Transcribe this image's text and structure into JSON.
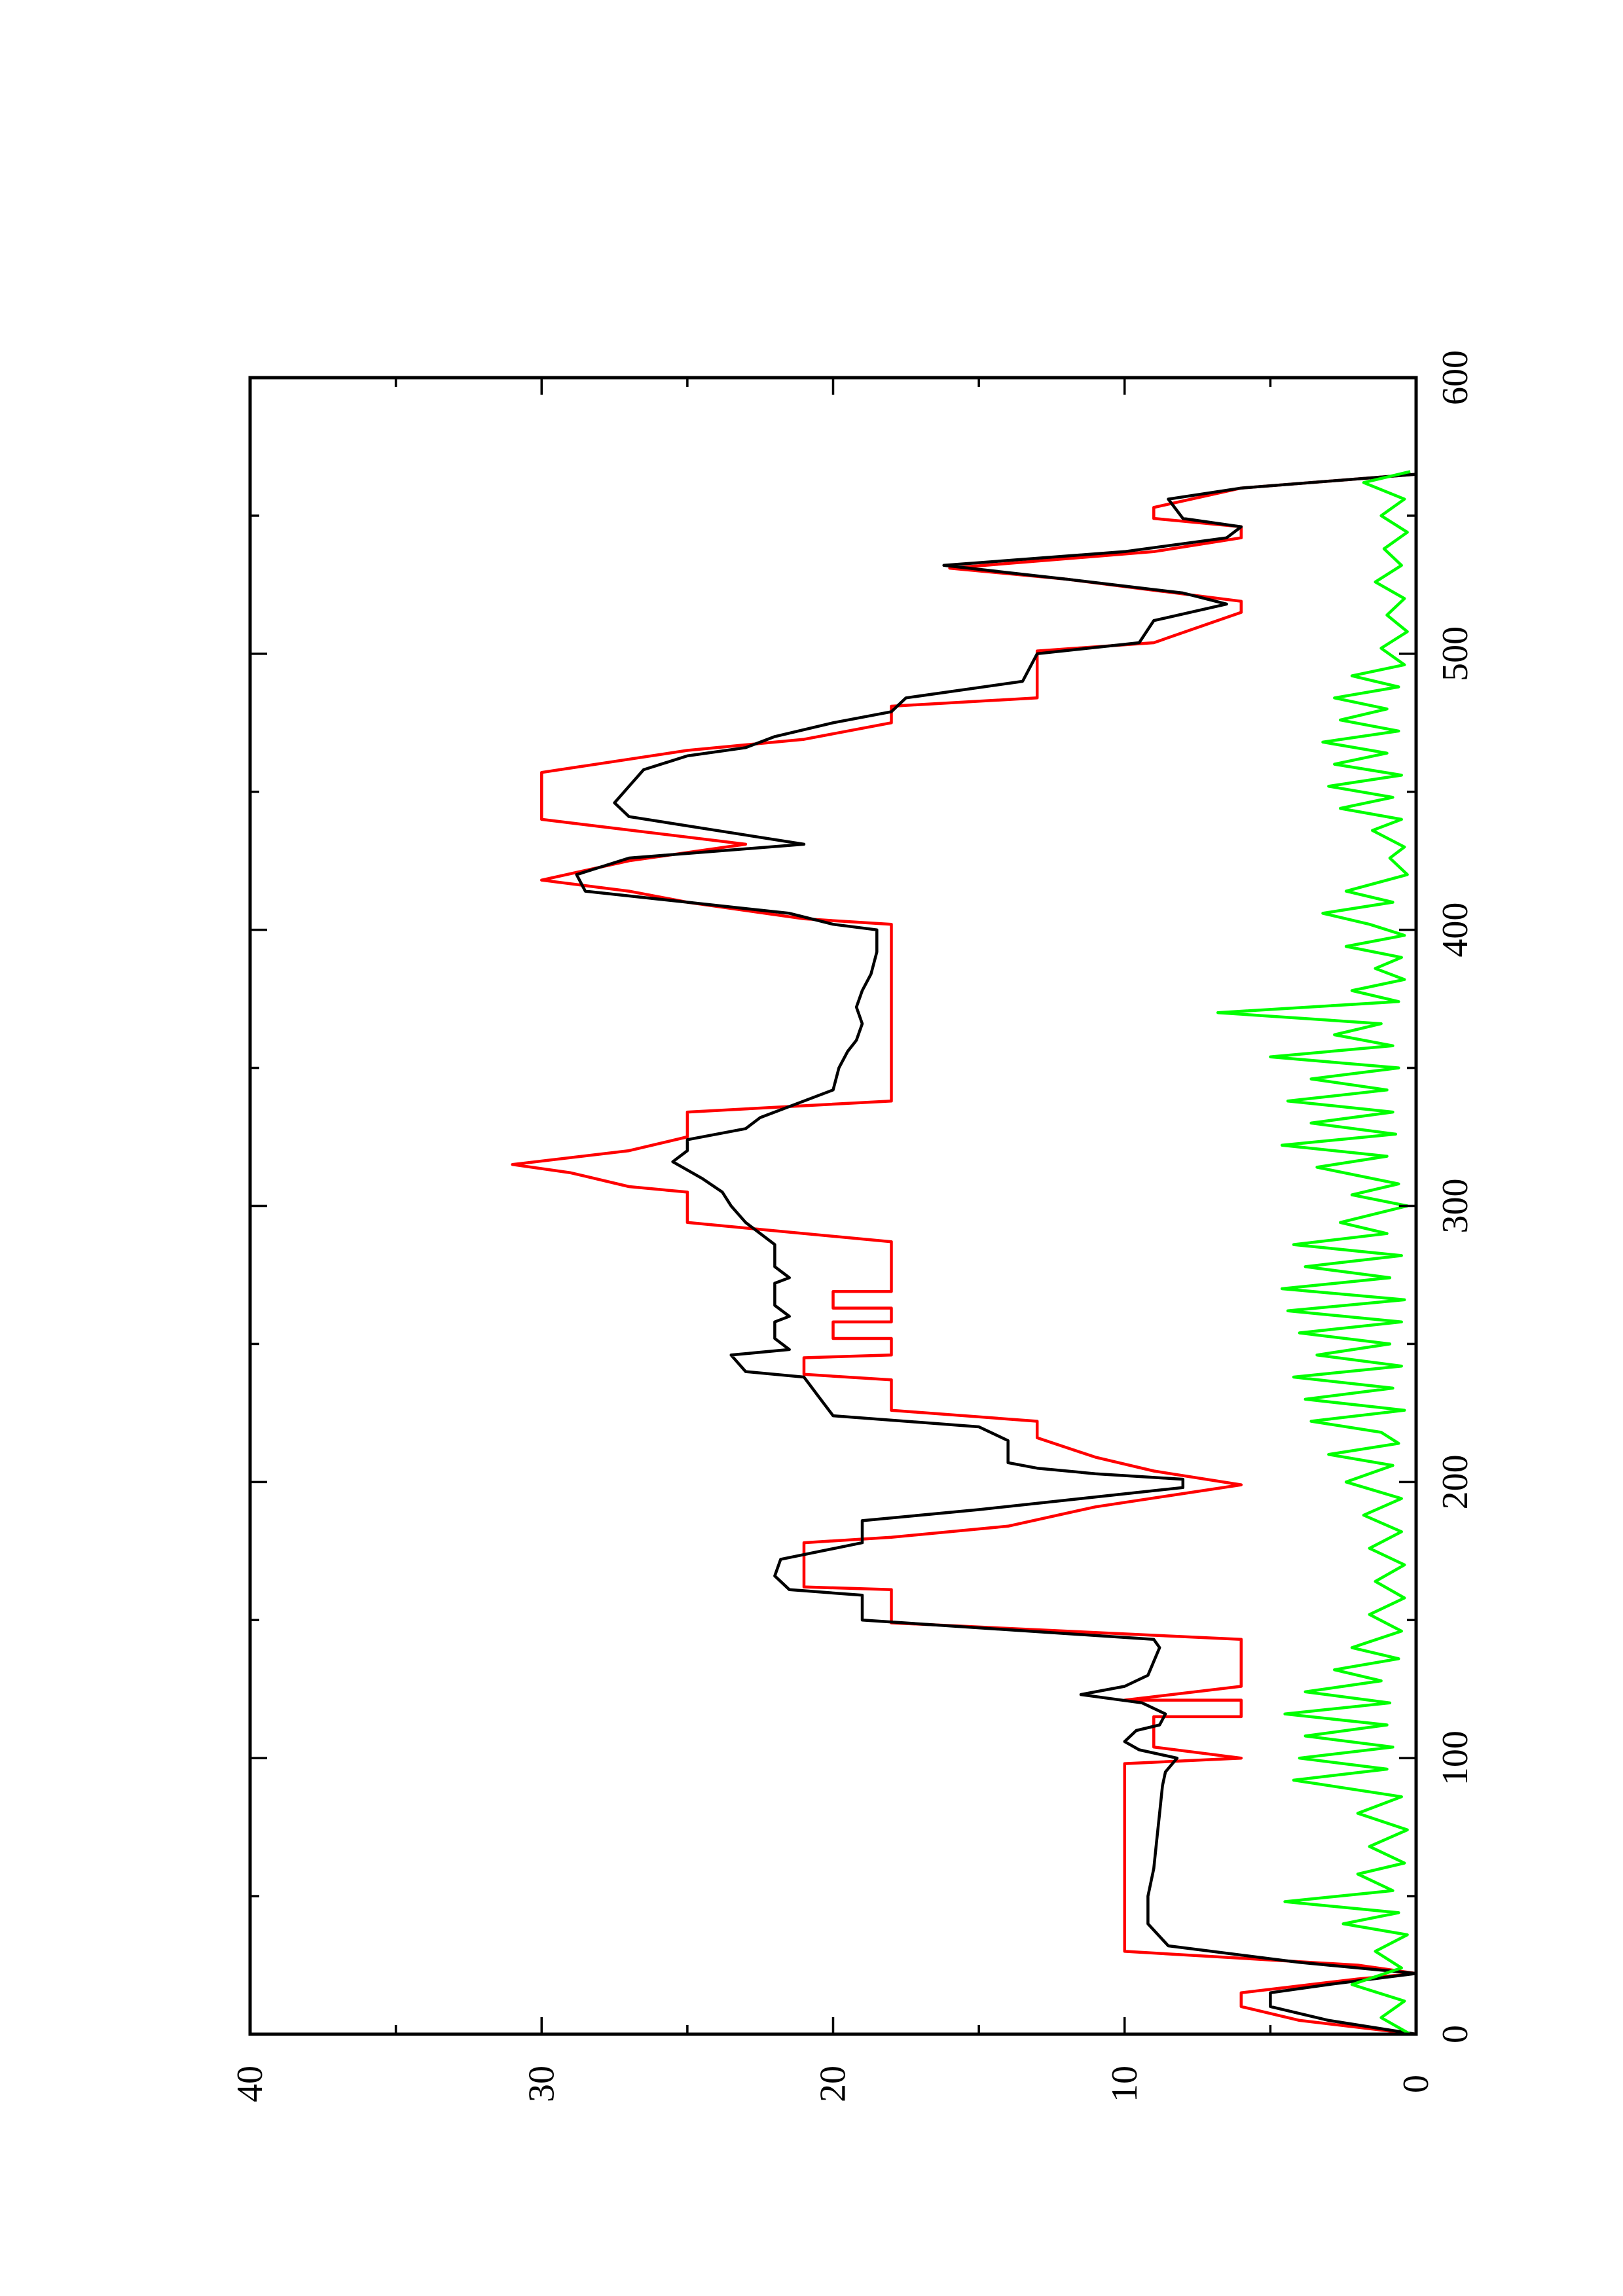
{
  "chart_data": {
    "type": "line",
    "orientation": "rotated-90-ccw",
    "title": "",
    "xlabel": "",
    "ylabel": "",
    "xlim": [
      0,
      600
    ],
    "ylim": [
      0,
      40
    ],
    "x_major_ticks": [
      0,
      100,
      200,
      300,
      400,
      500,
      600
    ],
    "x_minor_ticks": [
      50,
      150,
      250,
      350,
      450,
      550
    ],
    "y_major_ticks": [
      0,
      10,
      20,
      30,
      40
    ],
    "y_minor_ticks": [
      5,
      15,
      25,
      35
    ],
    "x_tick_labels": [
      "0",
      "100",
      "200",
      "300",
      "400",
      "500",
      "600"
    ],
    "y_tick_labels": [
      "0",
      "10",
      "20",
      "30",
      "40"
    ],
    "grid": false,
    "legend": "none",
    "series": [
      {
        "color": "#ff0000",
        "points": [
          [
            0,
            0
          ],
          [
            5,
            4
          ],
          [
            10,
            6
          ],
          [
            15,
            6
          ],
          [
            20,
            2
          ],
          [
            22,
            0
          ],
          [
            25,
            2
          ],
          [
            30,
            10
          ],
          [
            98,
            10
          ],
          [
            100,
            6
          ],
          [
            104,
            9
          ],
          [
            115,
            9
          ],
          [
            115,
            6
          ],
          [
            121,
            6
          ],
          [
            121,
            10
          ],
          [
            126,
            6
          ],
          [
            143,
            6
          ],
          [
            149,
            18
          ],
          [
            161,
            18
          ],
          [
            162,
            21
          ],
          [
            178,
            21
          ],
          [
            180,
            18
          ],
          [
            184,
            14
          ],
          [
            191,
            11
          ],
          [
            199,
            6
          ],
          [
            204,
            9
          ],
          [
            209,
            11
          ],
          [
            216,
            13
          ],
          [
            222,
            13
          ],
          [
            226,
            18
          ],
          [
            237,
            18
          ],
          [
            239,
            21
          ],
          [
            245,
            21
          ],
          [
            246,
            18
          ],
          [
            252,
            18
          ],
          [
            252,
            20
          ],
          [
            258,
            20
          ],
          [
            258,
            18
          ],
          [
            263,
            18
          ],
          [
            263,
            20
          ],
          [
            269,
            20
          ],
          [
            269,
            18
          ],
          [
            287,
            18
          ],
          [
            294,
            25
          ],
          [
            305,
            25
          ],
          [
            307,
            27
          ],
          [
            312,
            29
          ],
          [
            315,
            31
          ],
          [
            320,
            27
          ],
          [
            325,
            25
          ],
          [
            334,
            25
          ],
          [
            338,
            18
          ],
          [
            402,
            18
          ],
          [
            404,
            21
          ],
          [
            410,
            25
          ],
          [
            414,
            27
          ],
          [
            418,
            30
          ],
          [
            425,
            27
          ],
          [
            431,
            23
          ],
          [
            440,
            30
          ],
          [
            457,
            30
          ],
          [
            465,
            25
          ],
          [
            469,
            21
          ],
          [
            475,
            18
          ],
          [
            481,
            18
          ],
          [
            484,
            13
          ],
          [
            501,
            13
          ],
          [
            504,
            9
          ],
          [
            515,
            6
          ],
          [
            519,
            6
          ],
          [
            527,
            12
          ],
          [
            531,
            16
          ],
          [
            537,
            9
          ],
          [
            542,
            6
          ],
          [
            546,
            6
          ],
          [
            549,
            9
          ],
          [
            553,
            9
          ],
          [
            560,
            6
          ],
          [
            565,
            0
          ]
        ]
      },
      {
        "color": "#000000",
        "points": [
          [
            0,
            0
          ],
          [
            5,
            3
          ],
          [
            10,
            5
          ],
          [
            15,
            5
          ],
          [
            18,
            3
          ],
          [
            22,
            0
          ],
          [
            26,
            4
          ],
          [
            32,
            8.5
          ],
          [
            40,
            9.2
          ],
          [
            50,
            9.2
          ],
          [
            60,
            9
          ],
          [
            70,
            8.9
          ],
          [
            80,
            8.8
          ],
          [
            90,
            8.7
          ],
          [
            95,
            8.6
          ],
          [
            100,
            8.2
          ],
          [
            103,
            9.5
          ],
          [
            106,
            10
          ],
          [
            110,
            9.6
          ],
          [
            112,
            8.8
          ],
          [
            116,
            8.6
          ],
          [
            120,
            9.4
          ],
          [
            123,
            11.5
          ],
          [
            126,
            10
          ],
          [
            130,
            9.2
          ],
          [
            135,
            9
          ],
          [
            140,
            8.8
          ],
          [
            143,
            9
          ],
          [
            150,
            19
          ],
          [
            159,
            19
          ],
          [
            161,
            21.5
          ],
          [
            166,
            22
          ],
          [
            172,
            21.8
          ],
          [
            178,
            19
          ],
          [
            186,
            19
          ],
          [
            190,
            15
          ],
          [
            194,
            11.5
          ],
          [
            198,
            8
          ],
          [
            201,
            8
          ],
          [
            203,
            11
          ],
          [
            205,
            13
          ],
          [
            207,
            14
          ],
          [
            215,
            14
          ],
          [
            220,
            15
          ],
          [
            224,
            20
          ],
          [
            231,
            20.5
          ],
          [
            238,
            21
          ],
          [
            240,
            23
          ],
          [
            246,
            23.5
          ],
          [
            248,
            21.5
          ],
          [
            252,
            22
          ],
          [
            258,
            22
          ],
          [
            260,
            21.5
          ],
          [
            264,
            22
          ],
          [
            272,
            22
          ],
          [
            274,
            21.5
          ],
          [
            278,
            22
          ],
          [
            286,
            22
          ],
          [
            290,
            22.5
          ],
          [
            294,
            23
          ],
          [
            300,
            23.5
          ],
          [
            305,
            23.8
          ],
          [
            310,
            24.5
          ],
          [
            316,
            25.5
          ],
          [
            320,
            25
          ],
          [
            324,
            25
          ],
          [
            328,
            23
          ],
          [
            332,
            22.5
          ],
          [
            338,
            21
          ],
          [
            342,
            20
          ],
          [
            350,
            19.8
          ],
          [
            356,
            19.5
          ],
          [
            360,
            19.2
          ],
          [
            366,
            19
          ],
          [
            372,
            19.2
          ],
          [
            378,
            19
          ],
          [
            384,
            18.7
          ],
          [
            392,
            18.5
          ],
          [
            400,
            18.5
          ],
          [
            402,
            20
          ],
          [
            406,
            21.5
          ],
          [
            410,
            25
          ],
          [
            414,
            28.5
          ],
          [
            420,
            28.8
          ],
          [
            426,
            27
          ],
          [
            431,
            21
          ],
          [
            436,
            24
          ],
          [
            441,
            27
          ],
          [
            446,
            27.5
          ],
          [
            452,
            27
          ],
          [
            458,
            26.5
          ],
          [
            463,
            25
          ],
          [
            466,
            23
          ],
          [
            470,
            22
          ],
          [
            475,
            20
          ],
          [
            479,
            18
          ],
          [
            484,
            17.5
          ],
          [
            490,
            13.5
          ],
          [
            500,
            13
          ],
          [
            504,
            9.5
          ],
          [
            512,
            9
          ],
          [
            518,
            6.5
          ],
          [
            522,
            8
          ],
          [
            527,
            12
          ],
          [
            532,
            16.2
          ],
          [
            537,
            10
          ],
          [
            542,
            6.5
          ],
          [
            546,
            6
          ],
          [
            549,
            8
          ],
          [
            556,
            8.5
          ],
          [
            560,
            6
          ],
          [
            565,
            0
          ]
        ]
      },
      {
        "color": "#00ff00",
        "points": [
          [
            0,
            0.2
          ],
          [
            6,
            1.2
          ],
          [
            12,
            0.4
          ],
          [
            18,
            2.2
          ],
          [
            24,
            0.5
          ],
          [
            30,
            1.4
          ],
          [
            36,
            0.3
          ],
          [
            40,
            2.5
          ],
          [
            44,
            0.6
          ],
          [
            48,
            4.5
          ],
          [
            52,
            0.8
          ],
          [
            58,
            2
          ],
          [
            62,
            0.4
          ],
          [
            68,
            1.6
          ],
          [
            74,
            0.3
          ],
          [
            80,
            2
          ],
          [
            86,
            0.5
          ],
          [
            92,
            4.2
          ],
          [
            96,
            1
          ],
          [
            100,
            4
          ],
          [
            104,
            0.8
          ],
          [
            108,
            3.8
          ],
          [
            112,
            1
          ],
          [
            116,
            4.5
          ],
          [
            120,
            0.9
          ],
          [
            124,
            3.8
          ],
          [
            128,
            1.2
          ],
          [
            132,
            2.8
          ],
          [
            136,
            0.6
          ],
          [
            140,
            2.2
          ],
          [
            146,
            0.5
          ],
          [
            152,
            1.6
          ],
          [
            158,
            0.4
          ],
          [
            164,
            1.4
          ],
          [
            170,
            0.4
          ],
          [
            176,
            1.6
          ],
          [
            182,
            0.5
          ],
          [
            188,
            1.8
          ],
          [
            194,
            0.5
          ],
          [
            200,
            2.4
          ],
          [
            206,
            0.8
          ],
          [
            210,
            3
          ],
          [
            214,
            0.6
          ],
          [
            218,
            1.2
          ],
          [
            222,
            3.6
          ],
          [
            226,
            0.4
          ],
          [
            230,
            3.8
          ],
          [
            234,
            0.8
          ],
          [
            238,
            4.2
          ],
          [
            242,
            0.5
          ],
          [
            246,
            3.4
          ],
          [
            250,
            0.9
          ],
          [
            254,
            4
          ],
          [
            258,
            0.5
          ],
          [
            262,
            4.4
          ],
          [
            266,
            0.4
          ],
          [
            270,
            4.6
          ],
          [
            274,
            0.9
          ],
          [
            278,
            3.8
          ],
          [
            282,
            0.5
          ],
          [
            286,
            4.2
          ],
          [
            290,
            1
          ],
          [
            294,
            2.6
          ],
          [
            300,
            0.3
          ],
          [
            304,
            2.2
          ],
          [
            308,
            0.6
          ],
          [
            314,
            3.4
          ],
          [
            318,
            1
          ],
          [
            322,
            4.6
          ],
          [
            326,
            0.7
          ],
          [
            330,
            3.6
          ],
          [
            334,
            0.8
          ],
          [
            338,
            4.4
          ],
          [
            342,
            1
          ],
          [
            346,
            3.6
          ],
          [
            350,
            0.6
          ],
          [
            354,
            5
          ],
          [
            358,
            0.8
          ],
          [
            362,
            2.8
          ],
          [
            366,
            1.2
          ],
          [
            370,
            6.8
          ],
          [
            374,
            0.6
          ],
          [
            378,
            2.2
          ],
          [
            382,
            0.4
          ],
          [
            386,
            1.4
          ],
          [
            390,
            0.5
          ],
          [
            394,
            2.4
          ],
          [
            398,
            0.4
          ],
          [
            402,
            1.6
          ],
          [
            406,
            3.2
          ],
          [
            410,
            0.8
          ],
          [
            414,
            2.4
          ],
          [
            420,
            0.3
          ],
          [
            426,
            0.9
          ],
          [
            430,
            0.4
          ],
          [
            436,
            1.5
          ],
          [
            440,
            0.5
          ],
          [
            444,
            2.6
          ],
          [
            448,
            0.8
          ],
          [
            452,
            3
          ],
          [
            456,
            0.5
          ],
          [
            460,
            2.8
          ],
          [
            464,
            1
          ],
          [
            468,
            3.2
          ],
          [
            472,
            0.6
          ],
          [
            476,
            2.6
          ],
          [
            480,
            1
          ],
          [
            484,
            2.8
          ],
          [
            488,
            0.6
          ],
          [
            492,
            2.2
          ],
          [
            496,
            0.4
          ],
          [
            502,
            1.2
          ],
          [
            508,
            0.3
          ],
          [
            514,
            1
          ],
          [
            520,
            0.4
          ],
          [
            526,
            1.4
          ],
          [
            532,
            0.5
          ],
          [
            538,
            1.1
          ],
          [
            544,
            0.3
          ],
          [
            550,
            1.2
          ],
          [
            556,
            0.4
          ],
          [
            562,
            1.8
          ],
          [
            566,
            0.2
          ]
        ]
      }
    ]
  }
}
